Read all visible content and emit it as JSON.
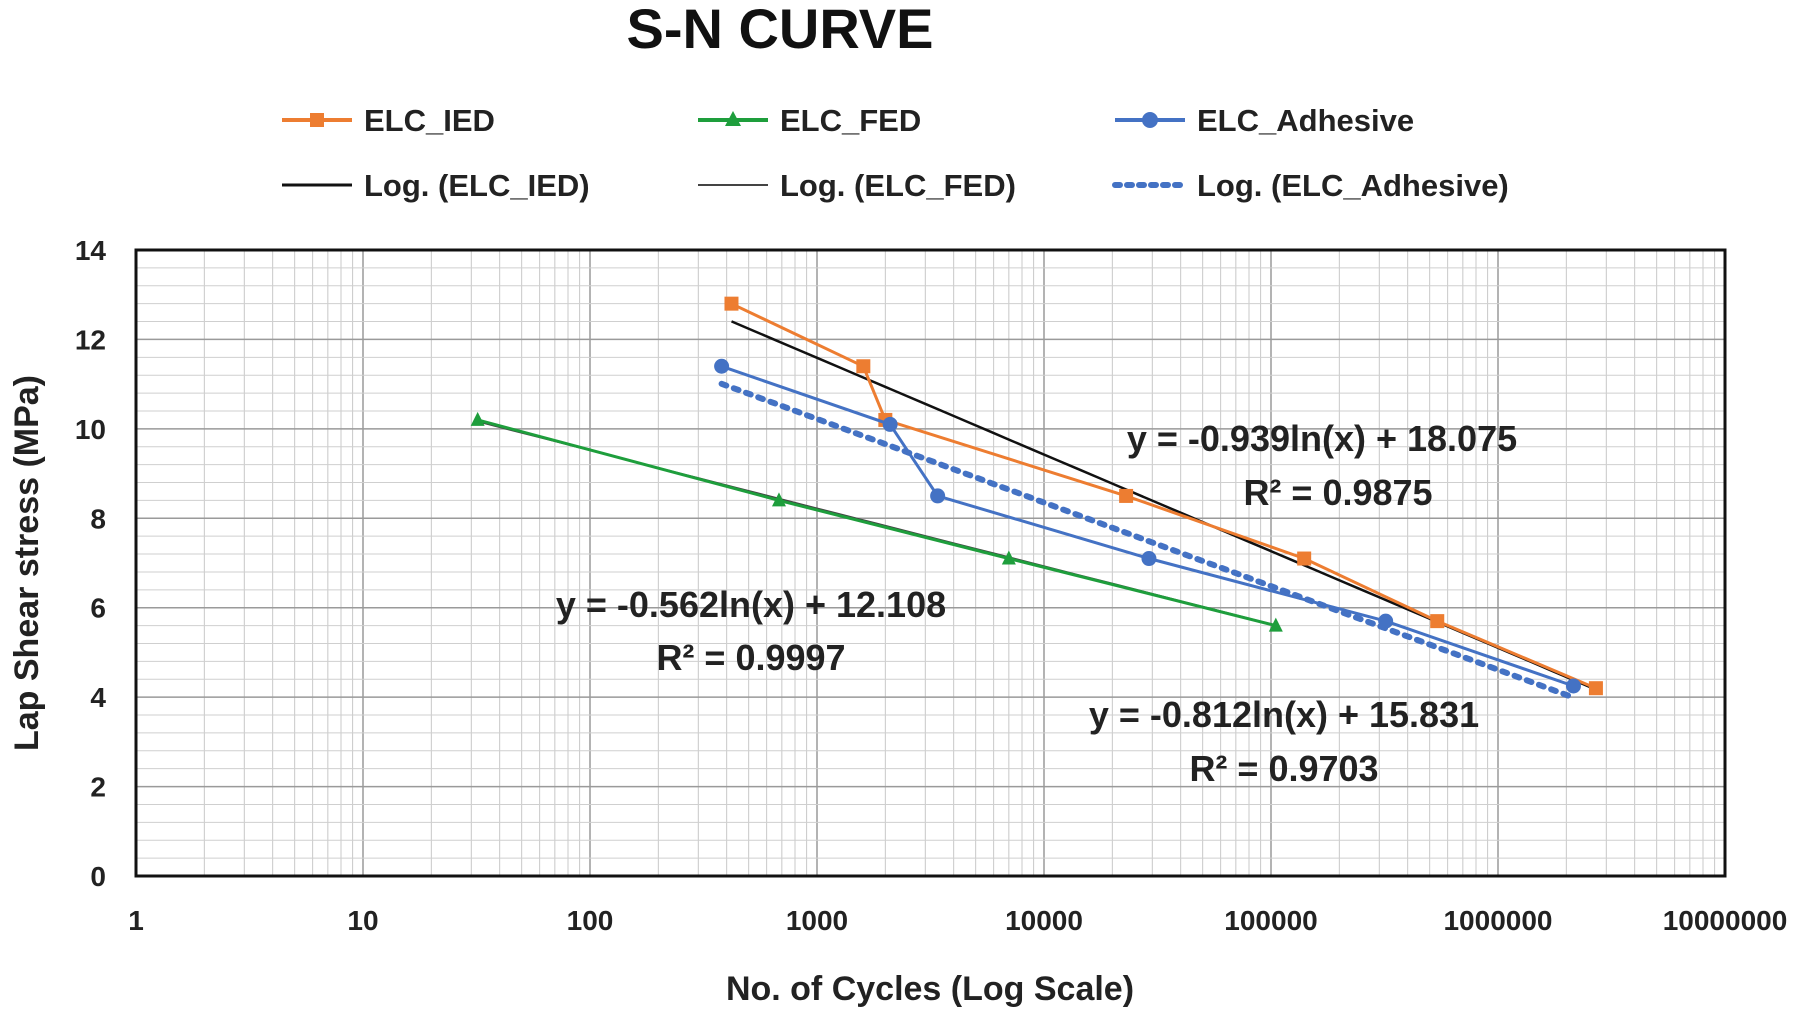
{
  "chart_data": {
    "type": "scatter",
    "title": "S-N CURVE",
    "xlabel": "No. of Cycles (Log Scale)",
    "ylabel": "Lap Shear stress (MPa)",
    "xscale": "log",
    "xlim": [
      1,
      10000000
    ],
    "ylim": [
      0,
      14
    ],
    "xticks": [
      "1",
      "10",
      "100",
      "1000",
      "10000",
      "100000",
      "1000000",
      "10000000"
    ],
    "yticks": [
      "0",
      "2",
      "4",
      "6",
      "8",
      "10",
      "12",
      "14"
    ],
    "grid": true,
    "legend_position": "top",
    "series": [
      {
        "name": "ELC_IED",
        "color": "#ED7D31",
        "marker": "square",
        "x": [
          420,
          1600,
          2000,
          23000,
          140000,
          540000,
          2700000
        ],
        "y": [
          12.8,
          11.4,
          10.2,
          8.5,
          7.1,
          5.7,
          4.2
        ]
      },
      {
        "name": "ELC_FED",
        "color": "#1E9E3C",
        "marker": "triangle",
        "x": [
          32,
          680,
          7000,
          105000
        ],
        "y": [
          10.2,
          8.4,
          7.1,
          5.6
        ]
      },
      {
        "name": "ELC_Adhesive",
        "color": "#4472C4",
        "marker": "circle",
        "x": [
          380,
          2100,
          3400,
          29000,
          320000,
          2150000
        ],
        "y": [
          11.4,
          10.1,
          8.5,
          7.1,
          5.7,
          4.25
        ]
      }
    ],
    "trendlines": [
      {
        "name": "Log. (ELC_IED)",
        "color": "#111111",
        "style": "solid",
        "equation": "y = -0.939ln(x) + 18.075",
        "r2": "R² = 0.9875",
        "a": -0.939,
        "b": 18.075,
        "xrange": [
          420,
          2700000
        ]
      },
      {
        "name": "Log. (ELC_FED)",
        "color": "#444444",
        "style": "solid",
        "equation": "y = -0.562ln(x) + 12.108",
        "r2": "R² = 0.9997",
        "a": -0.562,
        "b": 12.108,
        "xrange": [
          32,
          105000
        ]
      },
      {
        "name": "Log. (ELC_Adhesive)",
        "color": "#4472C4",
        "style": "dotted",
        "equation": "y = -0.812ln(x) + 15.831",
        "r2": "R² = 0.9703",
        "a": -0.812,
        "b": 15.831,
        "xrange": [
          380,
          2150000
        ]
      }
    ]
  }
}
